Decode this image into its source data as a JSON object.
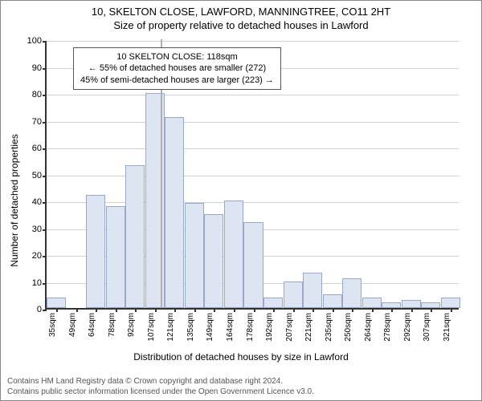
{
  "title_line1": "10, SKELTON CLOSE, LAWFORD, MANNINGTREE, CO11 2HT",
  "title_line2": "Size of property relative to detached houses in Lawford",
  "ylabel": "Number of detached properties",
  "xlabel": "Distribution of detached houses by size in Lawford",
  "footer_line1": "Contains HM Land Registry data © Crown copyright and database right 2024.",
  "footer_line2": "Contains public sector information licensed under the Open Government Licence v3.0.",
  "annotation": {
    "line1": "10 SKELTON CLOSE: 118sqm",
    "line2": "← 55% of detached houses are smaller (272)",
    "line3": "45% of semi-detached houses are larger (223) →"
  },
  "chart": {
    "type": "histogram",
    "ylim": [
      0,
      100
    ],
    "ytick_step": 10,
    "bar_fill": "#dde4f2",
    "bar_border": "#9aa8c9",
    "grid_color": "#d0d0d0",
    "axis_color": "#333333",
    "background_color": "#ffffff",
    "marker_value": 118,
    "marker_color": "#b0b0b0",
    "label_fontsize": 12,
    "tick_fontsize": 11,
    "x_categories": [
      "35sqm",
      "49sqm",
      "64sqm",
      "78sqm",
      "92sqm",
      "107sqm",
      "121sqm",
      "135sqm",
      "149sqm",
      "164sqm",
      "178sqm",
      "192sqm",
      "207sqm",
      "221sqm",
      "235sqm",
      "250sqm",
      "264sqm",
      "278sqm",
      "292sqm",
      "307sqm",
      "321sqm"
    ],
    "values": [
      4,
      0,
      42,
      38,
      53,
      80,
      71,
      39,
      35,
      40,
      32,
      4,
      10,
      13,
      5,
      11,
      4,
      2,
      3,
      2,
      4
    ]
  }
}
